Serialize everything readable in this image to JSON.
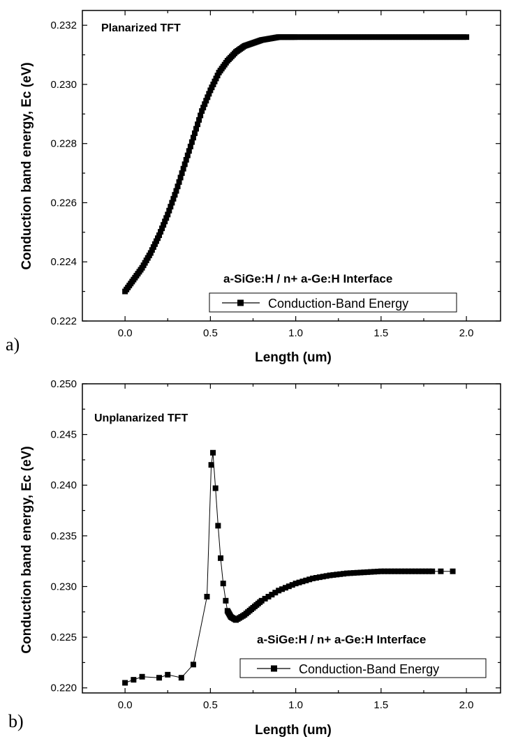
{
  "chart_data": [
    {
      "type": "line",
      "panel_label": "a)",
      "title": "Planarized TFT",
      "annotation": "a-SiGe:H / n+ a-Ge:H  Interface",
      "xlabel": "Length (um)",
      "ylabel": "Conduction band energy, Ec (eV)",
      "xlim": [
        -0.25,
        2.2
      ],
      "ylim": [
        0.222,
        0.2325
      ],
      "xticks": [
        "0.0",
        "0.5",
        "1.0",
        "1.5",
        "2.0"
      ],
      "xtick_values": [
        0,
        0.5,
        1.0,
        1.5,
        2.0
      ],
      "yticks": [
        "0.222",
        "0.224",
        "0.226",
        "0.228",
        "0.230",
        "0.232"
      ],
      "ytick_values": [
        0.222,
        0.224,
        0.226,
        0.228,
        0.23,
        0.232
      ],
      "legend": "Conduction-Band Energy",
      "series": [
        {
          "name": "Conduction-Band Energy",
          "x": [
            0.0,
            0.05,
            0.1,
            0.15,
            0.2,
            0.25,
            0.3,
            0.35,
            0.4,
            0.45,
            0.5,
            0.55,
            0.6,
            0.65,
            0.7,
            0.75,
            0.8,
            0.85,
            0.9,
            0.95,
            1.0,
            1.1,
            1.2,
            1.3,
            1.4,
            1.5,
            1.6,
            1.7,
            1.8,
            1.9,
            2.0
          ],
          "y": [
            0.223,
            0.2234,
            0.2238,
            0.2243,
            0.2249,
            0.2256,
            0.2264,
            0.2273,
            0.2282,
            0.2291,
            0.2298,
            0.2304,
            0.2308,
            0.2311,
            0.2313,
            0.2314,
            0.2315,
            0.23155,
            0.2316,
            0.2316,
            0.2316,
            0.2316,
            0.2316,
            0.2316,
            0.2316,
            0.2316,
            0.2316,
            0.2316,
            0.2316,
            0.2316,
            0.2316
          ]
        }
      ]
    },
    {
      "type": "line",
      "panel_label": "b)",
      "title": "Unplanarized TFT",
      "annotation": "a-SiGe:H / n+ a-Ge:H  Interface",
      "xlabel": "Length (um)",
      "ylabel": "Conduction band energy, Ec (eV)",
      "xlim": [
        -0.25,
        2.2
      ],
      "ylim": [
        0.2195,
        0.25
      ],
      "xticks": [
        "0.0",
        "0.5",
        "1.0",
        "1.5",
        "2.0"
      ],
      "xtick_values": [
        0,
        0.5,
        1.0,
        1.5,
        2.0
      ],
      "yticks": [
        "0.220",
        "0.225",
        "0.230",
        "0.235",
        "0.240",
        "0.245",
        "0.250"
      ],
      "ytick_values": [
        0.22,
        0.225,
        0.23,
        0.235,
        0.24,
        0.245,
        0.25
      ],
      "legend": "Conduction-Band Energy",
      "series": [
        {
          "name": "Conduction-Band Energy",
          "x": [
            0.0,
            0.05,
            0.1,
            0.2,
            0.25,
            0.33,
            0.4,
            0.48,
            0.505,
            0.515,
            0.53,
            0.545,
            0.56,
            0.575,
            0.59,
            0.6,
            0.62,
            0.65,
            0.7,
            0.75,
            0.8,
            0.9,
            1.0,
            1.1,
            1.2,
            1.3,
            1.4,
            1.5,
            1.6,
            1.7,
            1.8,
            1.85,
            1.92
          ],
          "y": [
            0.2205,
            0.2208,
            0.2211,
            0.221,
            0.2213,
            0.221,
            0.2223,
            0.229,
            0.242,
            0.2432,
            0.2397,
            0.236,
            0.2328,
            0.2303,
            0.2286,
            0.2276,
            0.227,
            0.2267,
            0.2272,
            0.2279,
            0.2286,
            0.2296,
            0.2303,
            0.2308,
            0.2311,
            0.2313,
            0.2314,
            0.2315,
            0.2315,
            0.2315,
            0.2315,
            0.2315,
            0.2315
          ]
        }
      ]
    }
  ]
}
